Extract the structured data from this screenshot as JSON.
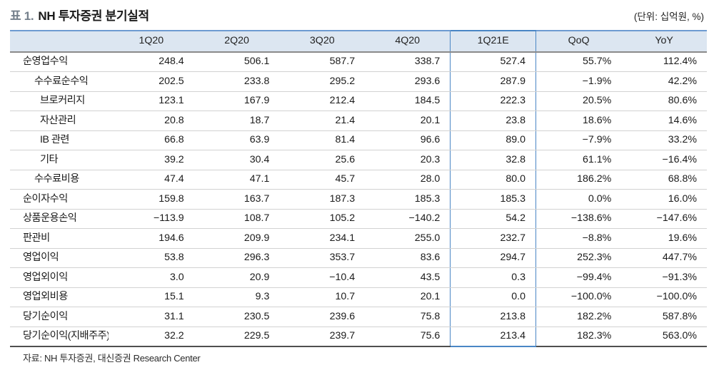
{
  "header": {
    "table_tag": "표 1.",
    "title": "NH 투자증권 분기실적",
    "unit_note": "(단위: 십억원, %)"
  },
  "table": {
    "columns": [
      "",
      "1Q20",
      "2Q20",
      "3Q20",
      "4Q20",
      "1Q21E",
      "QoQ",
      "YoY"
    ],
    "highlight_column": "1Q21E",
    "highlight_column_index": 5,
    "rows": [
      {
        "label": "순영업수익",
        "indent": 0,
        "values": [
          "248.4",
          "506.1",
          "587.7",
          "338.7",
          "527.4",
          "55.7%",
          "112.4%"
        ]
      },
      {
        "label": "수수료순수익",
        "indent": 1,
        "values": [
          "202.5",
          "233.8",
          "295.2",
          "293.6",
          "287.9",
          "−1.9%",
          "42.2%"
        ]
      },
      {
        "label": "브로커리지",
        "indent": 2,
        "values": [
          "123.1",
          "167.9",
          "212.4",
          "184.5",
          "222.3",
          "20.5%",
          "80.6%"
        ]
      },
      {
        "label": "자산관리",
        "indent": 2,
        "values": [
          "20.8",
          "18.7",
          "21.4",
          "20.1",
          "23.8",
          "18.6%",
          "14.6%"
        ]
      },
      {
        "label": "IB 관련",
        "indent": 2,
        "values": [
          "66.8",
          "63.9",
          "81.4",
          "96.6",
          "89.0",
          "−7.9%",
          "33.2%"
        ]
      },
      {
        "label": "기타",
        "indent": 2,
        "values": [
          "39.2",
          "30.4",
          "25.6",
          "20.3",
          "32.8",
          "61.1%",
          "−16.4%"
        ]
      },
      {
        "label": "수수료비용",
        "indent": 1,
        "values": [
          "47.4",
          "47.1",
          "45.7",
          "28.0",
          "80.0",
          "186.2%",
          "68.8%"
        ]
      },
      {
        "label": "순이자수익",
        "indent": 0,
        "values": [
          "159.8",
          "163.7",
          "187.3",
          "185.3",
          "185.3",
          "0.0%",
          "16.0%"
        ]
      },
      {
        "label": "상품운용손익",
        "indent": 0,
        "values": [
          "−113.9",
          "108.7",
          "105.2",
          "−140.2",
          "54.2",
          "−138.6%",
          "−147.6%"
        ]
      },
      {
        "label": "판관비",
        "indent": 0,
        "values": [
          "194.6",
          "209.9",
          "234.1",
          "255.0",
          "232.7",
          "−8.8%",
          "19.6%"
        ]
      },
      {
        "label": "영업이익",
        "indent": 0,
        "values": [
          "53.8",
          "296.3",
          "353.7",
          "83.6",
          "294.7",
          "252.3%",
          "447.7%"
        ]
      },
      {
        "label": "영업외이익",
        "indent": 0,
        "values": [
          "3.0",
          "20.9",
          "−10.4",
          "43.5",
          "0.3",
          "−99.4%",
          "−91.3%"
        ]
      },
      {
        "label": "영업외비용",
        "indent": 0,
        "values": [
          "15.1",
          "9.3",
          "10.7",
          "20.1",
          "0.0",
          "−100.0%",
          "−100.0%"
        ]
      },
      {
        "label": "당기순이익",
        "indent": 0,
        "values": [
          "31.1",
          "230.5",
          "239.6",
          "75.8",
          "213.8",
          "182.2%",
          "587.8%"
        ]
      },
      {
        "label": "당기순이익(지배주주)",
        "indent": 0,
        "values": [
          "32.2",
          "229.5",
          "239.7",
          "75.6",
          "213.4",
          "182.3%",
          "563.0%"
        ]
      }
    ]
  },
  "footer": {
    "source": "자료: NH 투자증권, 대신증권 Research Center"
  },
  "colors": {
    "header_bg": "#dce6f1",
    "header_top_border": "#6d9bd1",
    "header_bottom_border": "#8a8a8a",
    "highlight_border": "#4a86c5",
    "row_border": "#d2d2d2",
    "table_bottom_border": "#4f4f4f",
    "tag_color": "#75808c"
  }
}
